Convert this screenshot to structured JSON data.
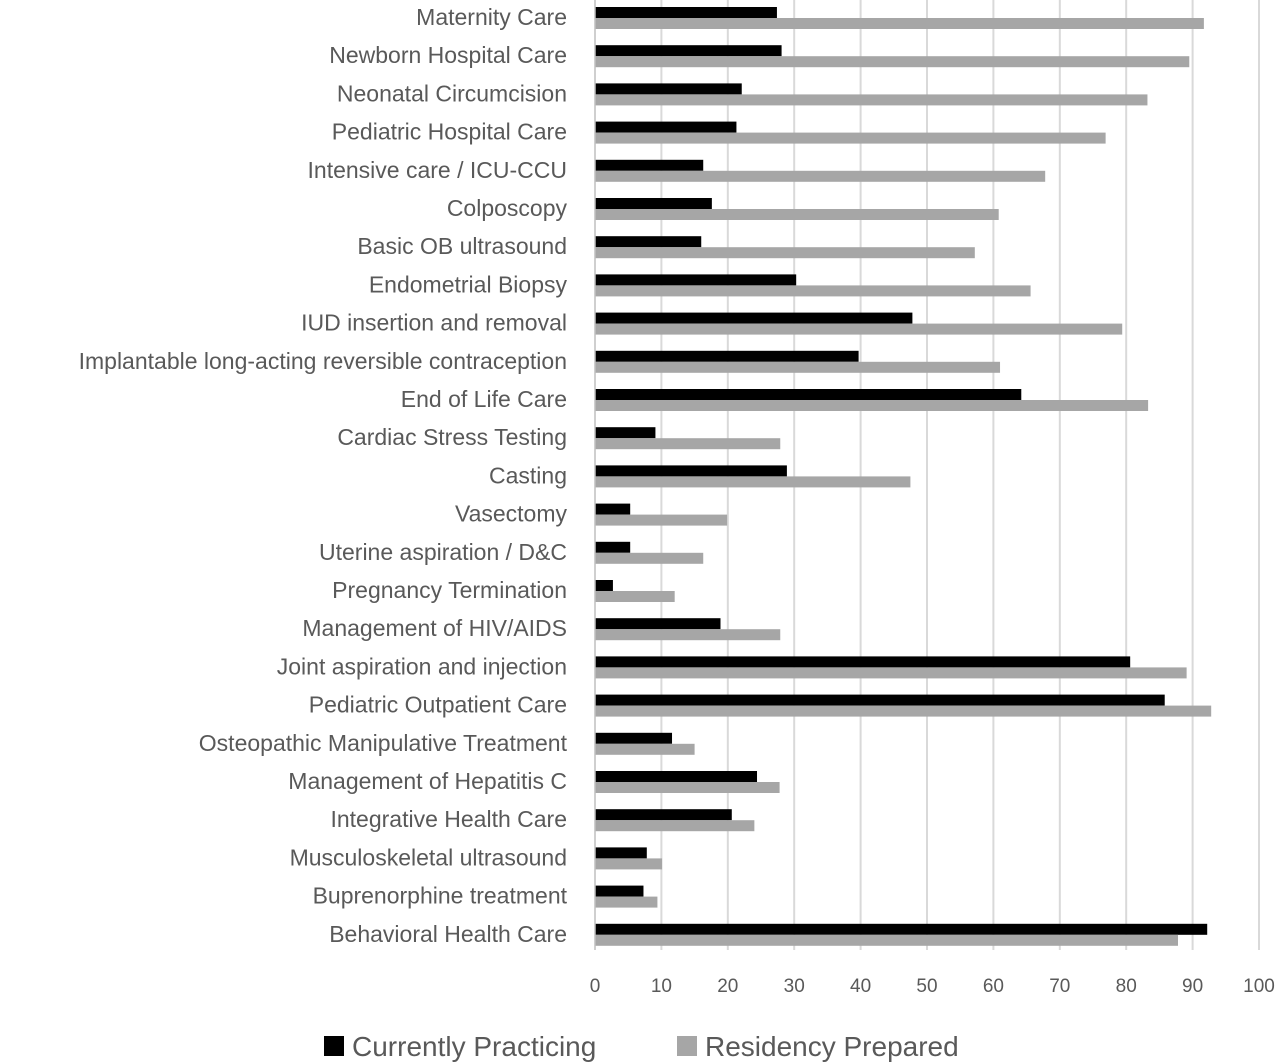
{
  "chart_data": {
    "type": "bar",
    "orientation": "horizontal",
    "title": "",
    "xlabel": "",
    "ylabel": "",
    "xlim": [
      0,
      100
    ],
    "x_ticks": [
      "0",
      "10",
      "20",
      "30",
      "40",
      "50",
      "60",
      "70",
      "80",
      "90",
      "100"
    ],
    "grid": "vertical",
    "legend_position": "bottom",
    "categories": [
      "Maternity Care",
      "Newborn Hospital Care",
      "Neonatal Circumcision",
      "Pediatric Hospital Care",
      "Intensive care / ICU-CCU",
      "Colposcopy",
      "Basic OB ultrasound",
      "Endometrial Biopsy",
      "IUD insertion and removal",
      "Implantable long-acting reversible contraception",
      "End of Life Care",
      "Cardiac Stress Testing",
      "Casting",
      "Vasectomy",
      "Uterine aspiration / D&C",
      "Pregnancy Termination",
      "Management of HIV/AIDS",
      "Joint aspiration and injection",
      "Pediatric Outpatient Care",
      "Osteopathic Manipulative Treatment",
      "Management of Hepatitis C",
      "Integrative Health Care",
      "Musculoskeletal ultrasound",
      "Buprenorphine treatment",
      "Behavioral Health Care"
    ],
    "series": [
      {
        "name": "Currently Practicing",
        "color": "#000000",
        "values": [
          27.4,
          28.1,
          22.1,
          21.3,
          16.3,
          17.6,
          16.0,
          30.3,
          47.8,
          39.7,
          64.2,
          9.1,
          28.9,
          5.3,
          5.3,
          2.7,
          18.9,
          80.6,
          85.8,
          11.6,
          24.4,
          20.6,
          7.8,
          7.3,
          92.2
        ]
      },
      {
        "name": "Residency Prepared",
        "color": "#a6a6a6",
        "values": [
          91.7,
          89.5,
          83.2,
          76.9,
          67.8,
          60.8,
          57.2,
          65.6,
          79.4,
          61.0,
          83.3,
          27.9,
          47.5,
          19.9,
          16.3,
          12.0,
          27.9,
          89.1,
          92.8,
          15.0,
          27.8,
          24.0,
          10.1,
          9.4,
          87.8
        ]
      }
    ]
  }
}
